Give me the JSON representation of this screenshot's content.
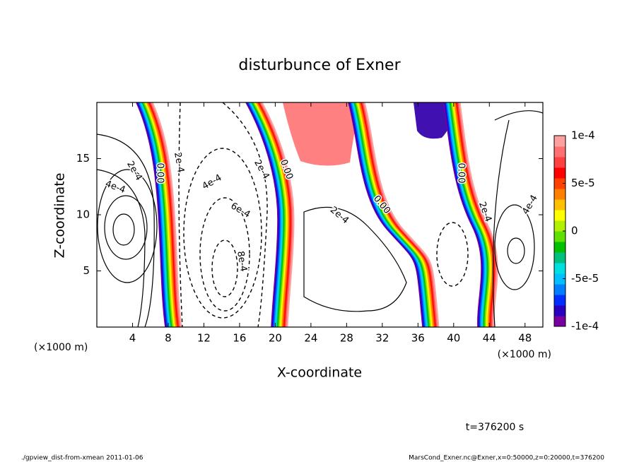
{
  "chart_data": {
    "type": "contour",
    "title": "disturbunce of Exner",
    "x_label": "X-coordinate",
    "y_label": "Z-coordinate",
    "x_unit": "(×1000 m)",
    "y_unit": "(×1000 m)",
    "xlim": [
      0,
      50
    ],
    "xticks": [
      4,
      8,
      12,
      16,
      20,
      24,
      28,
      32,
      36,
      40,
      44,
      48
    ],
    "ylim": [
      0,
      20
    ],
    "yticks": [
      5,
      10,
      15
    ],
    "colorbar": {
      "clim": [
        -0.0001,
        0.0001
      ],
      "ticks": [
        {
          "value": 0.0001,
          "label": "1e-4"
        },
        {
          "value": 5e-05,
          "label": "5e-5"
        },
        0,
        {
          "value": -5e-05,
          "label": "-5e-5"
        },
        {
          "value": -0.0001,
          "label": "-1e-4"
        }
      ],
      "colors": [
        "#7a00a0",
        "#2a00c0",
        "#0030ff",
        "#0080ff",
        "#00c0ff",
        "#00e0e0",
        "#00c080",
        "#00c000",
        "#60e000",
        "#b0f000",
        "#ffff00",
        "#ffc000",
        "#ff8000",
        "#ff4000",
        "#ff0000",
        "#ff4040",
        "#ff7070",
        "#ffa0a0"
      ]
    },
    "contour_labels": [
      "2e-4",
      "4e-4",
      "0.00",
      "2e-4",
      "4e-4",
      "6e-4",
      "8e-4",
      "2e-4",
      "0.00",
      "2e-4",
      "0.00",
      "0.00",
      "2e-4",
      "4e-4"
    ],
    "time_label": "t=376200 s",
    "footer_left": "./gpview_dist-from-xmean  2011-01-06",
    "footer_right": "MarsCond_Exner.nc@Exner,x=0:50000,z=0:20000,t=376200"
  }
}
